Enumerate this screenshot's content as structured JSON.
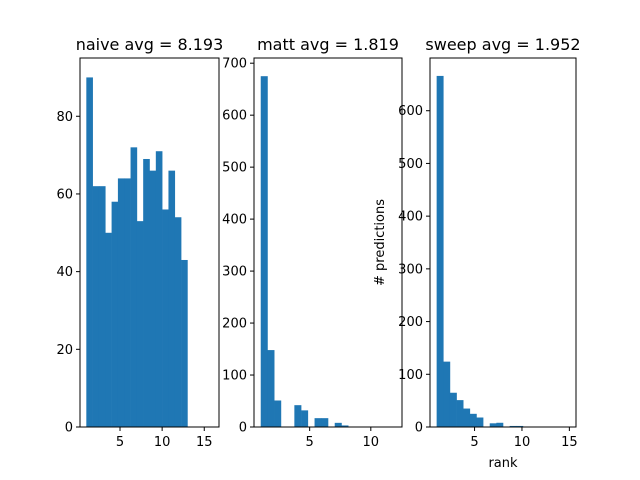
{
  "colors": {
    "bar": "#1f77b4",
    "axis": "#000000",
    "background": "#ffffff"
  },
  "chart_data": [
    {
      "type": "bar",
      "title": "naive avg = 8.193",
      "xlabel": "",
      "ylabel": "",
      "xlim": [
        0.25,
        16.75
      ],
      "ylim": [
        0,
        95
      ],
      "xticks": [
        5,
        10,
        15
      ],
      "yticks": [
        0,
        20,
        40,
        60,
        80
      ],
      "bin_start": 1,
      "bin_width": 0.75,
      "values": [
        90,
        62,
        62,
        50,
        58,
        64,
        64,
        72,
        53,
        69,
        66,
        71,
        56,
        66,
        54,
        43
      ]
    },
    {
      "type": "bar",
      "title": "matt avg = 1.819",
      "xlabel": "",
      "ylabel": "",
      "xlim": [
        0.45,
        12.55
      ],
      "ylim": [
        0,
        710
      ],
      "xticks": [
        5,
        10
      ],
      "yticks": [
        0,
        100,
        200,
        300,
        400,
        500,
        600,
        700
      ],
      "bin_start": 1,
      "bin_width": 0.55,
      "values": [
        675,
        148,
        51,
        0,
        0,
        42,
        32,
        0,
        17,
        17,
        0,
        8,
        3,
        0,
        0,
        0,
        0,
        0,
        0,
        0
      ]
    },
    {
      "type": "bar",
      "title": "sweep avg = 1.952",
      "xlabel": "rank",
      "ylabel": "# predictions",
      "xlim": [
        0.3,
        15.7
      ],
      "ylim": [
        0,
        700
      ],
      "xticks": [
        5,
        10,
        15
      ],
      "yticks": [
        0,
        100,
        200,
        300,
        400,
        500,
        600
      ],
      "bin_start": 1,
      "bin_width": 0.7,
      "values": [
        666,
        124,
        65,
        51,
        35,
        25,
        18,
        0,
        7,
        8,
        0,
        2,
        2,
        0,
        0,
        0,
        0,
        0,
        0,
        0
      ]
    }
  ]
}
